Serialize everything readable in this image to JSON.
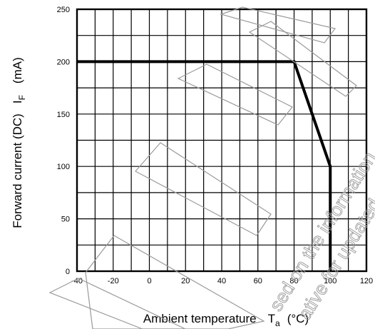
{
  "chart_data": {
    "type": "line",
    "title": "",
    "xlabel": "Ambient temperature",
    "xlabel_symbol": "T",
    "xlabel_subscript": "a",
    "xlabel_unit": "(°C)",
    "ylabel": "Forward current (DC)",
    "ylabel_symbol": "I",
    "ylabel_subscript": "F",
    "ylabel_unit": "(mA)",
    "xlim": [
      -40,
      120
    ],
    "ylim": [
      0,
      250
    ],
    "grid": true,
    "x_ticks": [
      -40,
      -20,
      0,
      20,
      40,
      60,
      80,
      100,
      120
    ],
    "y_ticks": [
      0,
      50,
      100,
      150,
      200,
      250
    ],
    "x_tick_labels": [
      "-40",
      "-20",
      "0",
      "20",
      "40",
      "60",
      "80",
      "100",
      "120"
    ],
    "y_tick_labels": [
      "0",
      "50",
      "100",
      "150",
      "200",
      "250"
    ],
    "series": [
      {
        "x": [
          -40,
          80,
          100,
          100
        ],
        "y": [
          200,
          200,
          100,
          0
        ]
      }
    ],
    "watermark_text": [
      "sed on the information",
      "ative for updated"
    ]
  }
}
